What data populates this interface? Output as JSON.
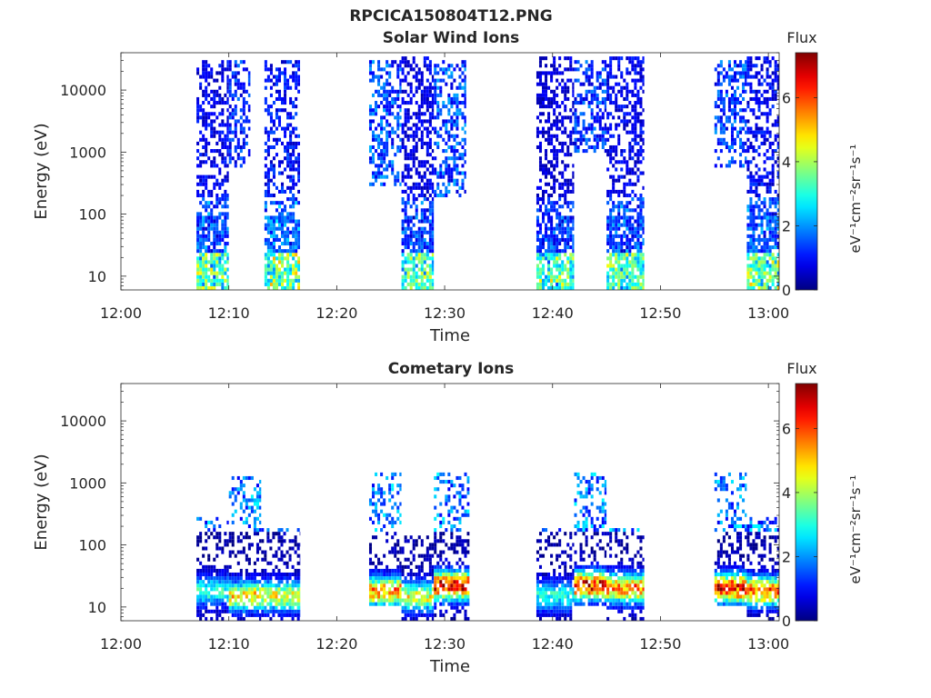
{
  "figure": {
    "title": "RPCICA150804T12.PNG"
  },
  "chart_data": [
    {
      "type": "heatmap",
      "title": "Solar Wind Ions",
      "xlabel": "Time",
      "ylabel": "Energy (eV)",
      "x_ticks": [
        "12:00",
        "12:10",
        "12:20",
        "12:30",
        "12:40",
        "12:50",
        "13:00"
      ],
      "xlim_minutes": [
        0,
        61
      ],
      "ylim": [
        6,
        40000
      ],
      "yscale": "log",
      "y_ticks": [
        10,
        100,
        1000,
        10000
      ],
      "y_tick_labels": [
        "10",
        "100",
        "1000",
        "10000"
      ],
      "colorbar": {
        "label": "Flux",
        "unit_label": "eV⁻¹cm⁻²sr⁻¹s⁻¹",
        "range": [
          0,
          7.4
        ],
        "ticks": [
          0,
          2,
          4,
          6
        ],
        "tick_labels": [
          "0",
          "2",
          "4",
          "6"
        ],
        "colormap": "jet"
      },
      "segments_minutes": [
        {
          "start": 7.0,
          "end": 10.0,
          "emin": 6,
          "emax": 30000,
          "level": 0.9
        },
        {
          "start": 10.0,
          "end": 12.0,
          "emin": 600,
          "emax": 30000,
          "level": 1.3
        },
        {
          "start": 13.3,
          "end": 16.6,
          "emin": 6,
          "emax": 30000,
          "level": 1.1
        },
        {
          "start": 23.0,
          "end": 26.0,
          "emin": 300,
          "emax": 30000,
          "level": 1.6
        },
        {
          "start": 26.0,
          "end": 29.0,
          "emin": 6,
          "emax": 35000,
          "level": 0.8
        },
        {
          "start": 29.0,
          "end": 32.0,
          "emin": 200,
          "emax": 30000,
          "level": 1.6
        },
        {
          "start": 38.5,
          "end": 42.0,
          "emin": 6,
          "emax": 35000,
          "level": 0.7
        },
        {
          "start": 42.0,
          "end": 45.0,
          "emin": 1000,
          "emax": 30000,
          "level": 1.4
        },
        {
          "start": 45.0,
          "end": 48.5,
          "emin": 6,
          "emax": 35000,
          "level": 0.9
        },
        {
          "start": 55.0,
          "end": 58.0,
          "emin": 600,
          "emax": 30000,
          "level": 1.5
        },
        {
          "start": 58.0,
          "end": 61.0,
          "emin": 6,
          "emax": 35000,
          "level": 1.0
        }
      ]
    },
    {
      "type": "heatmap",
      "title": "Cometary Ions",
      "xlabel": "Time",
      "ylabel": "Energy (eV)",
      "x_ticks": [
        "12:00",
        "12:10",
        "12:20",
        "12:30",
        "12:40",
        "12:50",
        "13:00"
      ],
      "xlim_minutes": [
        0,
        61
      ],
      "ylim": [
        6,
        40000
      ],
      "yscale": "log",
      "y_ticks": [
        10,
        100,
        1000,
        10000
      ],
      "y_tick_labels": [
        "10",
        "100",
        "1000",
        "10000"
      ],
      "colorbar": {
        "label": "Flux",
        "unit_label": "eV⁻¹cm⁻²sr⁻¹s⁻¹",
        "range": [
          0,
          7.4
        ],
        "ticks": [
          0,
          2,
          4,
          6
        ],
        "tick_labels": [
          "0",
          "2",
          "4",
          "6"
        ],
        "colormap": "jet"
      },
      "segments_minutes": [
        {
          "start": 7.0,
          "end": 10.0,
          "emin": 6,
          "emax": 300,
          "peak_energy": 18,
          "peak_level": 3.0
        },
        {
          "start": 10.0,
          "end": 13.0,
          "emin": 6,
          "emax": 1200,
          "peak_energy": 15,
          "peak_level": 5.0
        },
        {
          "start": 13.0,
          "end": 16.6,
          "emin": 6,
          "emax": 200,
          "peak_energy": 15,
          "peak_level": 4.8
        },
        {
          "start": 23.0,
          "end": 26.0,
          "emin": 10,
          "emax": 1500,
          "peak_energy": 18,
          "peak_level": 5.8
        },
        {
          "start": 26.0,
          "end": 29.0,
          "emin": 6,
          "emax": 150,
          "peak_energy": 15,
          "peak_level": 4.5
        },
        {
          "start": 29.0,
          "end": 32.3,
          "emin": 6,
          "emax": 1500,
          "peak_energy": 22,
          "peak_level": 7.0
        },
        {
          "start": 38.5,
          "end": 42.0,
          "emin": 6,
          "emax": 200,
          "peak_energy": 15,
          "peak_level": 3.0
        },
        {
          "start": 42.0,
          "end": 45.0,
          "emin": 10,
          "emax": 1500,
          "peak_energy": 22,
          "peak_level": 6.8
        },
        {
          "start": 45.0,
          "end": 48.5,
          "emin": 6,
          "emax": 200,
          "peak_energy": 20,
          "peak_level": 5.8
        },
        {
          "start": 55.0,
          "end": 58.0,
          "emin": 10,
          "emax": 1500,
          "peak_energy": 20,
          "peak_level": 6.8
        },
        {
          "start": 58.0,
          "end": 61.0,
          "emin": 6,
          "emax": 300,
          "peak_energy": 18,
          "peak_level": 6.0
        }
      ]
    }
  ]
}
